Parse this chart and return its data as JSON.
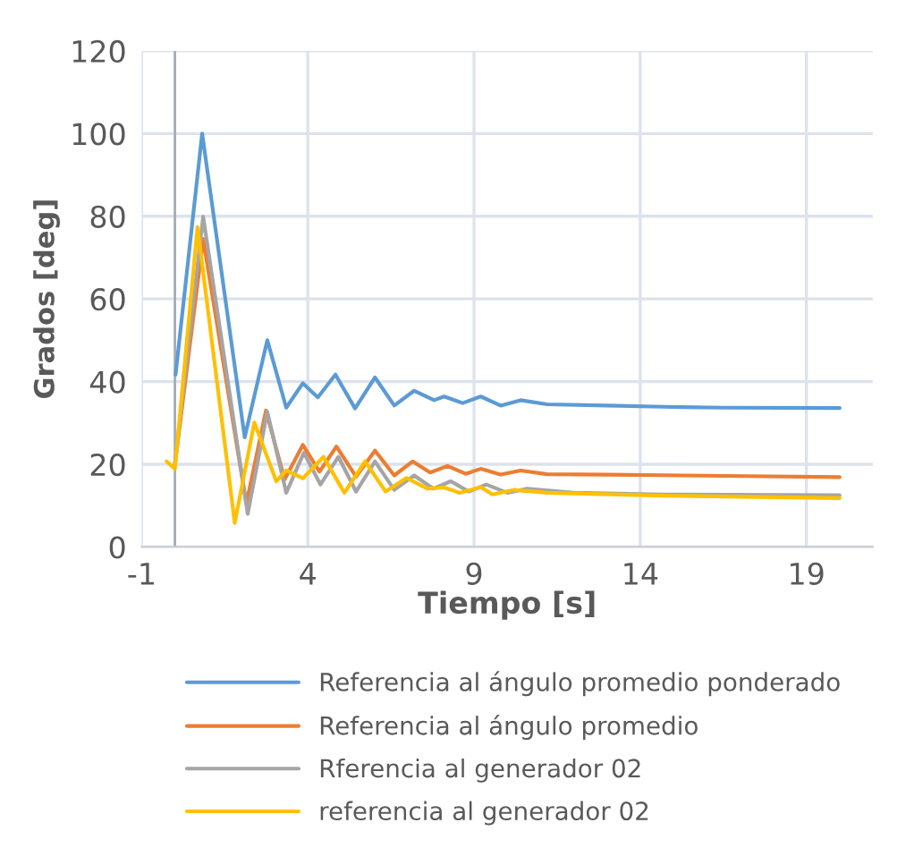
{
  "chart_data": {
    "type": "line",
    "xlabel": "Tiempo [s]",
    "ylabel": "Grados [deg]",
    "xlim": [
      -1,
      21
    ],
    "xticks": [
      -1,
      4,
      9,
      14,
      19
    ],
    "ylim": [
      0,
      120
    ],
    "yticks": [
      0,
      20,
      40,
      60,
      80,
      100,
      120
    ],
    "grid": true,
    "legend": "bottom",
    "marker": "none",
    "line_style": "solid",
    "ref_lines": [
      {
        "axis": "x",
        "value": 0,
        "color": "#a6acb6"
      }
    ],
    "series": [
      {
        "name": "Referencia al ángulo promedio ponderado",
        "color": "#5b9bd5",
        "x": [
          0.02,
          0.82,
          2.1,
          2.78,
          3.35,
          3.85,
          4.3,
          4.83,
          5.42,
          6.02,
          6.6,
          7.2,
          7.8,
          8.1,
          8.66,
          9.2,
          9.8,
          10.4,
          11.2,
          13,
          14.7,
          16.5,
          20
        ],
        "values": [
          41.7,
          100,
          26.5,
          50,
          33.7,
          39.6,
          36.2,
          41.7,
          33.5,
          41,
          34.2,
          37.8,
          35.5,
          36.4,
          34.8,
          36.4,
          34.2,
          35.5,
          34.5,
          34.2,
          33.9,
          33.7,
          33.6
        ]
      },
      {
        "name": "Referencia al ángulo promedio",
        "color": "#ed7d31",
        "x": [
          0,
          0.85,
          2.15,
          2.74,
          3.3,
          3.85,
          4.35,
          4.86,
          5.45,
          6.02,
          6.6,
          7.15,
          7.68,
          8.2,
          8.75,
          9.2,
          9.8,
          10.4,
          11.2,
          13,
          16.5,
          20
        ],
        "values": [
          20,
          74.5,
          10.5,
          33,
          16.3,
          24.7,
          18.2,
          24.3,
          17,
          23.3,
          17.3,
          20.7,
          18,
          19.6,
          17.7,
          18.9,
          17.5,
          18.5,
          17.6,
          17.5,
          17.2,
          16.9
        ]
      },
      {
        "name": "Rferencia al generador 02",
        "color": "#a5a5a5",
        "x": [
          0,
          0.85,
          2.19,
          2.78,
          3.35,
          3.88,
          4.38,
          4.92,
          5.45,
          6.02,
          6.6,
          7.2,
          7.77,
          8.3,
          8.84,
          9.37,
          10,
          10.6,
          12,
          14.7,
          20
        ],
        "values": [
          20,
          79.9,
          8,
          32.7,
          13.1,
          22.8,
          15.1,
          21.8,
          13.4,
          20.7,
          13.8,
          17.3,
          14.1,
          15.9,
          13.4,
          15.1,
          13.1,
          14.1,
          13.1,
          12.7,
          12.5
        ]
      },
      {
        "name": "referencia al generador 02",
        "color": "#ffc000",
        "x": [
          -0.25,
          0,
          0.68,
          1.8,
          2.39,
          3.05,
          3.35,
          3.85,
          4.47,
          5.1,
          5.72,
          6.34,
          6.97,
          7.6,
          8.1,
          8.57,
          9.2,
          9.55,
          10.2,
          11.2,
          14.7,
          20
        ],
        "values": [
          20.7,
          18.9,
          77.4,
          5.8,
          30.1,
          15.9,
          18.5,
          16.6,
          21.8,
          13.1,
          20.7,
          13.4,
          16.7,
          14.1,
          14.4,
          13.1,
          14.5,
          12.7,
          13.8,
          13.1,
          12.4,
          11.8
        ]
      }
    ]
  }
}
